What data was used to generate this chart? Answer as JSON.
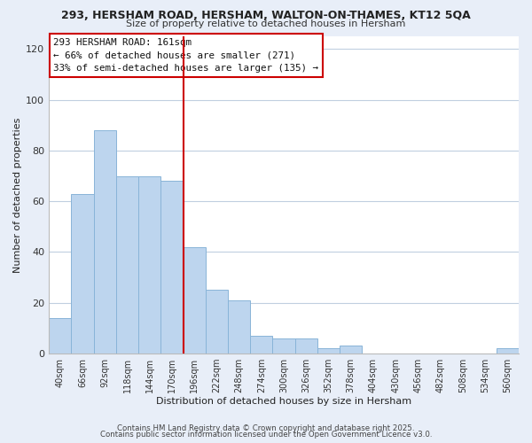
{
  "title": "293, HERSHAM ROAD, HERSHAM, WALTON-ON-THAMES, KT12 5QA",
  "subtitle": "Size of property relative to detached houses in Hersham",
  "xlabel": "Distribution of detached houses by size in Hersham",
  "ylabel": "Number of detached properties",
  "bar_labels": [
    "40sqm",
    "66sqm",
    "92sqm",
    "118sqm",
    "144sqm",
    "170sqm",
    "196sqm",
    "222sqm",
    "248sqm",
    "274sqm",
    "300sqm",
    "326sqm",
    "352sqm",
    "378sqm",
    "404sqm",
    "430sqm",
    "456sqm",
    "482sqm",
    "508sqm",
    "534sqm",
    "560sqm"
  ],
  "bar_heights": [
    14,
    63,
    88,
    70,
    70,
    68,
    42,
    25,
    21,
    7,
    6,
    6,
    2,
    3,
    0,
    0,
    0,
    0,
    0,
    0,
    2
  ],
  "bar_color": "#bdd5ee",
  "bar_edge_color": "#89b4d8",
  "vline_x": 5.5,
  "vline_color": "#cc0000",
  "ylim": [
    0,
    125
  ],
  "yticks": [
    0,
    20,
    40,
    60,
    80,
    100,
    120
  ],
  "annotation_title": "293 HERSHAM ROAD: 161sqm",
  "annotation_line1": "← 66% of detached houses are smaller (271)",
  "annotation_line2": "33% of semi-detached houses are larger (135) →",
  "footer1": "Contains HM Land Registry data © Crown copyright and database right 2025.",
  "footer2": "Contains public sector information licensed under the Open Government Licence v3.0.",
  "background_color": "#e8eef8",
  "plot_bg_color": "#ffffff",
  "grid_color": "#c0cfe0"
}
